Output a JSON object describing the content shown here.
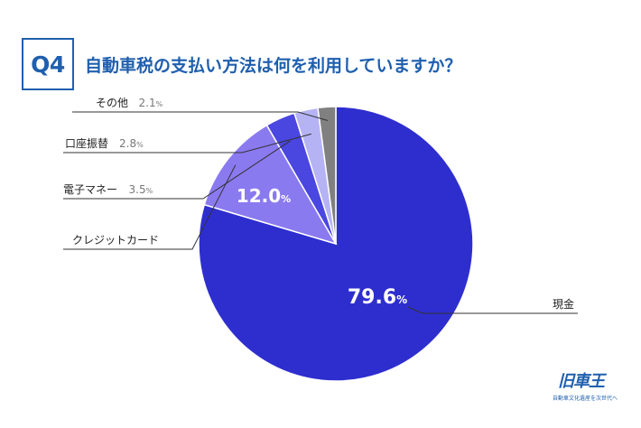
{
  "header": {
    "badge": "Q4",
    "title": "自動車税の支払い方法は何を利用していますか？"
  },
  "chart_data": {
    "type": "pie",
    "title": "自動車税の支払い方法は何を利用していますか？",
    "unit": "%",
    "slices": [
      {
        "label": "現金",
        "value": 79.6,
        "display": "79.6",
        "color": "#2e2ecf"
      },
      {
        "label": "クレジットカード",
        "value": 12.0,
        "display": "12.0",
        "color": "#8a7af0"
      },
      {
        "label": "電子マネー",
        "value": 3.5,
        "display": "3.5",
        "color": "#4a46e0"
      },
      {
        "label": "口座振替",
        "value": 2.8,
        "display": "2.8",
        "color": "#b6b3f5"
      },
      {
        "label": "その他",
        "value": 2.1,
        "display": "2.1",
        "color": "#808080"
      }
    ]
  },
  "logo": {
    "mark": "旧車王",
    "tagline": "自動車文化遺産を次世代へ"
  }
}
